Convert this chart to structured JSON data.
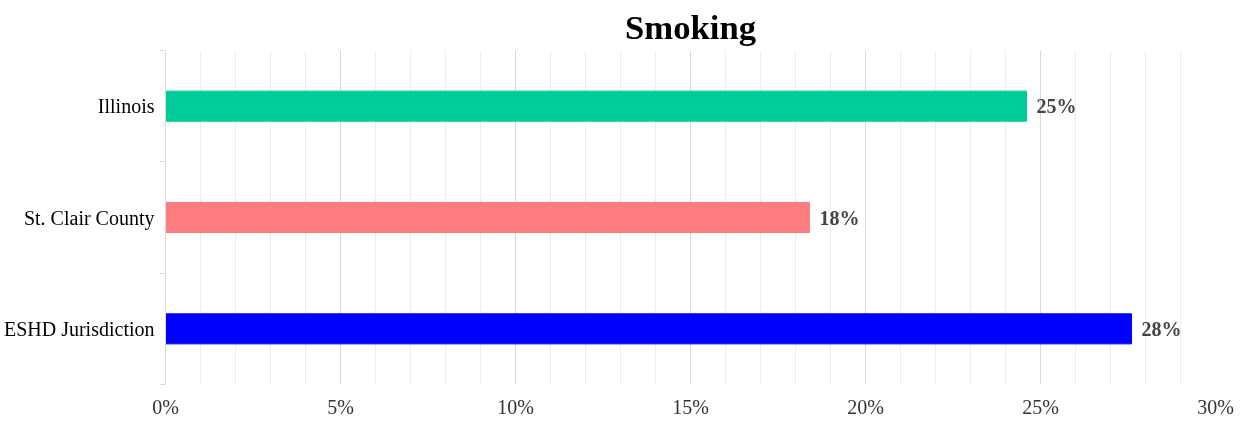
{
  "chart_data": {
    "type": "bar",
    "orientation": "horizontal",
    "title": "Smoking",
    "categories": [
      "Illinois",
      "St. Clair County",
      "ESHD Jurisdiction"
    ],
    "values": [
      24.6,
      18.4,
      27.6
    ],
    "colors": [
      "#00cc99",
      "#ff7c80",
      "#0000ff"
    ],
    "value_labels": [
      "25%",
      "18%",
      "28%"
    ],
    "xlim": [
      0,
      30
    ],
    "xticks": [
      {
        "value": 0,
        "label": "0%"
      },
      {
        "value": 1,
        "label": null
      },
      {
        "value": 2,
        "label": null
      },
      {
        "value": 3,
        "label": null
      },
      {
        "value": 4,
        "label": null
      },
      {
        "value": 5,
        "label": "5%"
      },
      {
        "value": 6,
        "label": null
      },
      {
        "value": 7,
        "label": null
      },
      {
        "value": 8,
        "label": null
      },
      {
        "value": 9,
        "label": null
      },
      {
        "value": 10,
        "label": "10%"
      },
      {
        "value": 11,
        "label": null
      },
      {
        "value": 12,
        "label": null
      },
      {
        "value": 13,
        "label": null
      },
      {
        "value": 14,
        "label": null
      },
      {
        "value": 15,
        "label": "15%"
      },
      {
        "value": 16,
        "label": null
      },
      {
        "value": 17,
        "label": null
      },
      {
        "value": 18,
        "label": null
      },
      {
        "value": 19,
        "label": null
      },
      {
        "value": 20,
        "label": "20%"
      },
      {
        "value": 21,
        "label": null
      },
      {
        "value": 22,
        "label": null
      },
      {
        "value": 23,
        "label": null
      },
      {
        "value": 24,
        "label": null
      },
      {
        "value": 25,
        "label": "25%"
      },
      {
        "value": 26,
        "label": null
      },
      {
        "value": 27,
        "label": null
      },
      {
        "value": 28,
        "label": null
      },
      {
        "value": 29,
        "label": null
      },
      {
        "value": 30,
        "label": "30%"
      }
    ],
    "grid": "x"
  }
}
